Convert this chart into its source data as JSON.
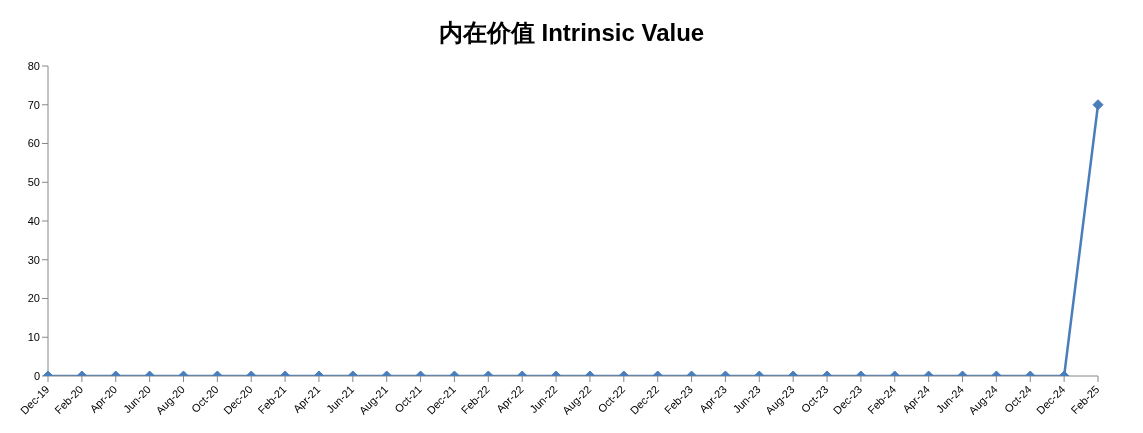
{
  "chart_data": {
    "type": "line",
    "title": "内在价值 Intrinsic Value",
    "categories": [
      "Dec-19",
      "Feb-20",
      "Apr-20",
      "Jun-20",
      "Aug-20",
      "Oct-20",
      "Dec-20",
      "Feb-21",
      "Apr-21",
      "Jun-21",
      "Aug-21",
      "Oct-21",
      "Dec-21",
      "Feb-22",
      "Apr-22",
      "Jun-22",
      "Aug-22",
      "Oct-22",
      "Dec-22",
      "Feb-23",
      "Apr-23",
      "Jun-23",
      "Aug-23",
      "Oct-23",
      "Dec-23",
      "Feb-24",
      "Apr-24",
      "Jun-24",
      "Aug-24",
      "Oct-24",
      "Dec-24",
      "Feb-25"
    ],
    "series": [
      {
        "color": "#4a7ebb",
        "values": [
          0,
          0,
          0,
          0,
          0,
          0,
          0,
          0,
          0,
          0,
          0,
          0,
          0,
          0,
          0,
          0,
          0,
          0,
          0,
          0,
          0,
          0,
          0,
          0,
          0,
          0,
          0,
          0,
          0,
          0,
          0,
          70
        ]
      }
    ],
    "ylim": [
      0,
      80
    ],
    "yticks": [
      0,
      10,
      20,
      30,
      40,
      50,
      60,
      70,
      80
    ],
    "grid": false,
    "legend": false,
    "marker": "diamond",
    "line_style": "solid"
  }
}
